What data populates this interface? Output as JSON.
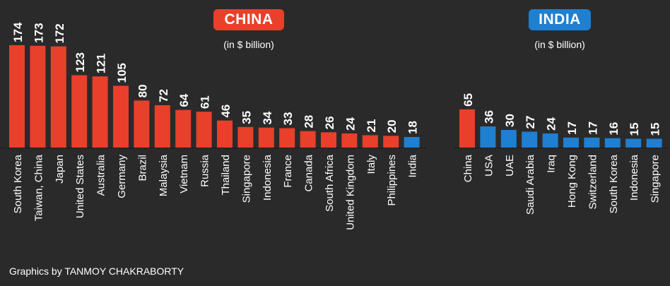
{
  "chart_data": [
    {
      "type": "bar",
      "title": "CHINA",
      "subtitle": "(in $ billion)",
      "categories": [
        "South Korea",
        "Taiwan, China",
        "Japan",
        "United States",
        "Australia",
        "Germany",
        "Brazil",
        "Malaysia",
        "Vietnam",
        "Russia",
        "Thailand",
        "Singapore",
        "Indonesia",
        "France",
        "Canada",
        "South Africa",
        "United Kingdom",
        "Italy",
        "Philippines",
        "India"
      ],
      "values": [
        174,
        173,
        172,
        123,
        121,
        105,
        80,
        72,
        64,
        61,
        46,
        35,
        34,
        33,
        28,
        26,
        24,
        21,
        20,
        18
      ],
      "colors": [
        "#e8402a",
        "#e8402a",
        "#e8402a",
        "#e8402a",
        "#e8402a",
        "#e8402a",
        "#e8402a",
        "#e8402a",
        "#e8402a",
        "#e8402a",
        "#e8402a",
        "#e8402a",
        "#e8402a",
        "#e8402a",
        "#e8402a",
        "#e8402a",
        "#e8402a",
        "#e8402a",
        "#e8402a",
        "#1f7fd0"
      ],
      "badge_color": "#e8402a",
      "ylim": [
        0,
        174
      ],
      "grid": false
    },
    {
      "type": "bar",
      "title": "INDIA",
      "subtitle": "(in $ billion)",
      "categories": [
        "China",
        "USA",
        "UAE",
        "Saudi Arabia",
        "Iraq",
        "Hong Kong",
        "Switzerland",
        "South Korea",
        "Indonesia",
        "Singapore"
      ],
      "values": [
        65,
        36,
        30,
        27,
        24,
        17,
        17,
        16,
        15,
        15
      ],
      "colors": [
        "#e8402a",
        "#1f7fd0",
        "#1f7fd0",
        "#1f7fd0",
        "#1f7fd0",
        "#1f7fd0",
        "#1f7fd0",
        "#1f7fd0",
        "#1f7fd0",
        "#1f7fd0"
      ],
      "badge_color": "#1f7fd0",
      "ylim": [
        0,
        174
      ],
      "grid": false
    }
  ],
  "credit": "Graphics by TANMOY CHAKRABORTY"
}
